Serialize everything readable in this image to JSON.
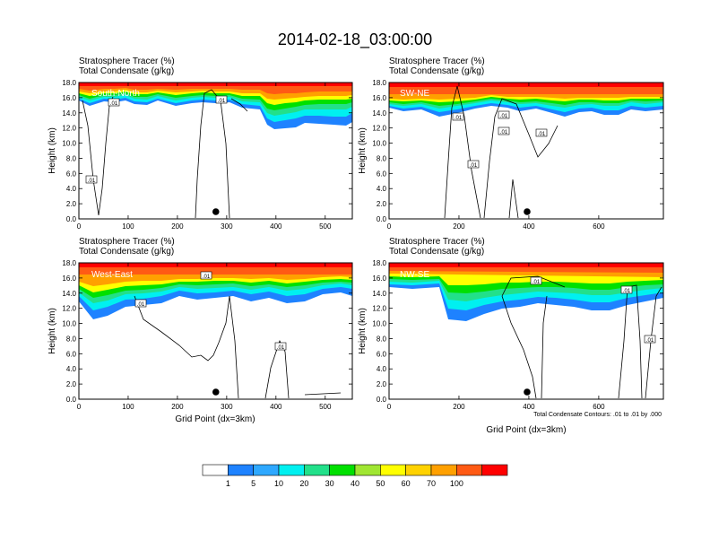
{
  "title": "2014-02-18_03:00:00",
  "footer_note": "Total Condensate Contours: .01 to .01 by .000",
  "colors": {
    "levels": [
      "#ffffff",
      "#1e82ff",
      "#2ea8ff",
      "#00f0f0",
      "#22e08a",
      "#00e000",
      "#a0e632",
      "#ffff00",
      "#ffd200",
      "#ffa000",
      "#ff5a14",
      "#ff0000"
    ]
  },
  "chart_data": [
    {
      "type": "heatmap",
      "label": "South-North",
      "header_line1": "Stratosphere Tracer   (%)",
      "header_line2": "Total Condensate   (g/kg)",
      "ylabel": "Height (km)",
      "xlabel": "",
      "xlim": [
        0,
        555
      ],
      "ylim": [
        0,
        18
      ],
      "xticks": [
        "0",
        "100",
        "200",
        "300",
        "400",
        "500"
      ],
      "yticks": [
        "0.0",
        "2.0",
        "4.0",
        "6.0",
        "8.0",
        "10.0",
        "12.0",
        "14.0",
        "16.0",
        "18.0"
      ],
      "contour_labels": [
        ".01",
        ".01",
        ".01"
      ],
      "marker_x": 278
    },
    {
      "type": "heatmap",
      "label": "SW-NE",
      "header_line1": "Stratosphere Tracer   (%)",
      "header_line2": "Total Condensate   (g/kg)",
      "ylabel": "Height (km)",
      "xlabel": "",
      "xlim": [
        0,
        785
      ],
      "ylim": [
        0,
        18
      ],
      "xticks": [
        "0",
        "200",
        "400",
        "600"
      ],
      "yticks": [
        "0.0",
        "2.0",
        "4.0",
        "6.0",
        "8.0",
        "10.0",
        "12.0",
        "14.0",
        "16.0",
        "18.0"
      ],
      "contour_labels": [
        ".01",
        ".01",
        ".01",
        ".01",
        ".01"
      ],
      "marker_x": 395
    },
    {
      "type": "heatmap",
      "label": "West-East",
      "header_line1": "Stratosphere Tracer   (%)",
      "header_line2": "Total Condensate   (g/kg)",
      "ylabel": "Height (km)",
      "xlabel": "Grid Point (dx=3km)",
      "xlim": [
        0,
        555
      ],
      "ylim": [
        0,
        18
      ],
      "xticks": [
        "0",
        "100",
        "200",
        "300",
        "400",
        "500"
      ],
      "yticks": [
        "0.0",
        "2.0",
        "4.0",
        "6.0",
        "8.0",
        "10.0",
        "12.0",
        "14.0",
        "16.0",
        "18.0"
      ],
      "contour_labels": [
        ".01",
        ".01",
        ".01"
      ],
      "marker_x": 278
    },
    {
      "type": "heatmap",
      "label": "NW-SE",
      "header_line1": "Stratosphere Tracer   (%)",
      "header_line2": "Total Condensate   (g/kg)",
      "ylabel": "Height (km)",
      "xlabel": "Grid Point (dx=3km)",
      "xlim": [
        0,
        785
      ],
      "ylim": [
        0,
        18
      ],
      "xticks": [
        "0",
        "200",
        "400",
        "600"
      ],
      "yticks": [
        "0.0",
        "2.0",
        "4.0",
        "6.0",
        "8.0",
        "10.0",
        "12.0",
        "14.0",
        "16.0",
        "18.0"
      ],
      "contour_labels": [
        ".01",
        ".01",
        ".01"
      ],
      "marker_x": 395
    }
  ],
  "colorbar": {
    "labels": [
      "1",
      "5",
      "10",
      "20",
      "30",
      "40",
      "50",
      "60",
      "70",
      "100"
    ]
  }
}
